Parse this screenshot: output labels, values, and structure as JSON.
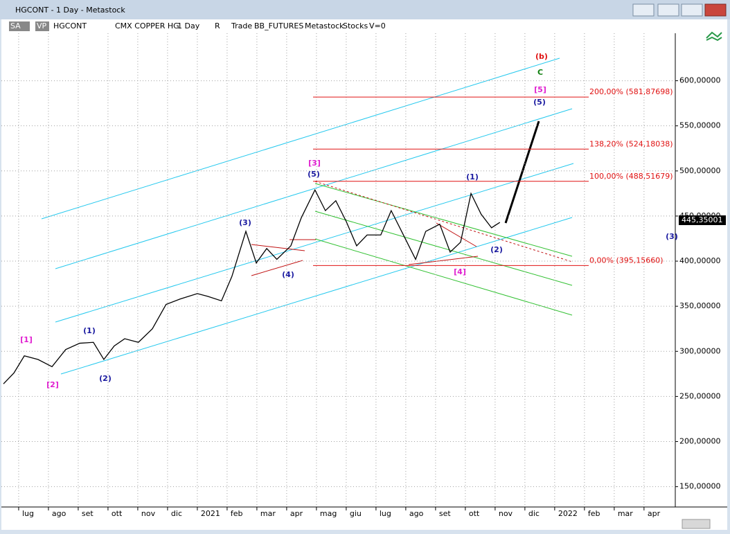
{
  "window": {
    "title": "HGCONT - 1 Day - Metastock",
    "toolbar": [
      "SA",
      "VP",
      "HGCONT",
      "CMX COPPER HG",
      "1 Day",
      "R",
      "Trade",
      "BB_FUTURES",
      "Metastock",
      "Stocks",
      "V=0"
    ]
  },
  "chart_data": {
    "type": "line",
    "x": [
      -0.51,
      -0.16,
      0.19,
      0.65,
      1.12,
      1.58,
      2.05,
      2.51,
      2.86,
      3.21,
      3.56,
      4.02,
      4.49,
      4.95,
      5.42,
      6.0,
      6.35,
      6.81,
      7.16,
      7.63,
      7.98,
      8.33,
      8.67,
      9.14,
      9.49,
      9.95,
      10.3,
      10.65,
      11.0,
      11.35,
      11.7,
      12.16,
      12.51,
      12.86,
      13.33,
      13.67,
      14.14,
      14.49,
      14.84,
      15.19,
      15.53,
      15.88,
      16.16
    ],
    "series": [
      {
        "name": "HGCONT",
        "color": "#000000",
        "values": [
          264,
          276,
          295,
          291,
          283,
          302,
          309,
          310,
          291,
          306,
          314,
          310,
          325,
          352,
          358,
          364,
          361,
          356,
          383,
          433,
          398,
          414,
          402,
          417,
          448,
          479,
          456,
          467,
          444,
          417,
          429,
          429,
          456,
          433,
          402,
          433,
          441,
          410,
          421,
          475,
          452,
          437,
          443
        ]
      }
    ],
    "last_price": {
      "value": 445.35001,
      "label": "445,35001"
    },
    "xlim": [
      -0.58,
      22.05
    ],
    "xticks": [
      {
        "value": 0,
        "label": "lug"
      },
      {
        "value": 1,
        "label": "ago"
      },
      {
        "value": 2,
        "label": "set"
      },
      {
        "value": 3,
        "label": "ott"
      },
      {
        "value": 4,
        "label": "nov"
      },
      {
        "value": 5,
        "label": "dic"
      },
      {
        "value": 6,
        "label": "2021"
      },
      {
        "value": 7,
        "label": "feb"
      },
      {
        "value": 8,
        "label": "mar"
      },
      {
        "value": 9,
        "label": "apr"
      },
      {
        "value": 10,
        "label": "mag"
      },
      {
        "value": 11,
        "label": "giu"
      },
      {
        "value": 12,
        "label": "lug"
      },
      {
        "value": 13,
        "label": "ago"
      },
      {
        "value": 14,
        "label": "set"
      },
      {
        "value": 15,
        "label": "ott"
      },
      {
        "value": 16,
        "label": "nov"
      },
      {
        "value": 17,
        "label": "dic"
      },
      {
        "value": 18,
        "label": "2022"
      },
      {
        "value": 19,
        "label": "feb"
      },
      {
        "value": 20,
        "label": "mar"
      },
      {
        "value": 21,
        "label": "apr"
      }
    ],
    "ylim": [
      129,
      668
    ],
    "yticks": [
      {
        "value": 150,
        "label": "150,00000"
      },
      {
        "value": 200,
        "label": "200,00000"
      },
      {
        "value": 250,
        "label": "250,00000"
      },
      {
        "value": 300,
        "label": "300,00000"
      },
      {
        "value": 350,
        "label": "350,00000"
      },
      {
        "value": 400,
        "label": "400,00000"
      },
      {
        "value": 450,
        "label": "450,00000"
      },
      {
        "value": 500,
        "label": "500,00000"
      },
      {
        "value": 550,
        "label": "550,00000"
      },
      {
        "value": 600,
        "label": "600,00000"
      }
    ],
    "grid": true,
    "levels": [
      {
        "value": 581.87698,
        "label": "200,00% (581,87698)"
      },
      {
        "value": 524.18038,
        "label": "138,20% (524,18038)"
      },
      {
        "value": 488.51679,
        "label": "100,00% (488,51679)"
      },
      {
        "value": 395.1566,
        "label": "0,00% (395,15660)"
      }
    ],
    "level_color": "#e01010",
    "annotations": [
      {
        "text": "(b)",
        "color": "#e01010"
      },
      {
        "text": "C",
        "color": "#108010"
      },
      {
        "text": "[5]",
        "color": "#e020d0"
      },
      {
        "text": "(5)",
        "color": "#1a1aa0"
      },
      {
        "text": "[3]",
        "color": "#e020d0"
      },
      {
        "text": "(5)",
        "color": "#1a1aa0"
      },
      {
        "text": "(3)",
        "color": "#1a1aa0"
      },
      {
        "text": "(4)",
        "color": "#1a1aa0"
      },
      {
        "text": "(1)",
        "color": "#1a1aa0"
      },
      {
        "text": "(2)",
        "color": "#1a1aa0"
      },
      {
        "text": "[4]",
        "color": "#e020d0"
      },
      {
        "text": "(1)",
        "color": "#1a1aa0"
      },
      {
        "text": "(2)",
        "color": "#1a1aa0"
      },
      {
        "text": "[1]",
        "color": "#e020d0"
      },
      {
        "text": "[2]",
        "color": "#e020d0"
      },
      {
        "text": "(3)",
        "color": "#1a1aa0"
      }
    ]
  }
}
